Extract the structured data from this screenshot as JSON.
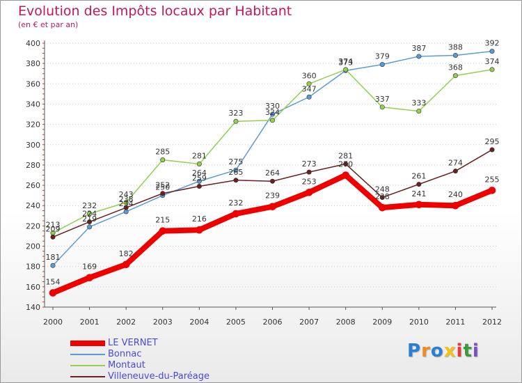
{
  "title": "Evolution des Impôts locaux par Habitant",
  "subtitle": "(en € et par an)",
  "logo": {
    "text": "Proxiti",
    "letters": [
      "P",
      "r",
      "o",
      "x",
      "i",
      "t",
      "i"
    ],
    "colors": [
      "#2a7fd4",
      "#f08a24",
      "#2a7fd4",
      "#f2c21a",
      "#e23b3b",
      "#3a9a3a",
      "#7a4ec4"
    ]
  },
  "chart_data": {
    "type": "line",
    "x": [
      2000,
      2001,
      2002,
      2003,
      2004,
      2005,
      2006,
      2007,
      2008,
      2009,
      2010,
      2011,
      2012
    ],
    "ylim": [
      140,
      400
    ],
    "yticks": [
      140,
      160,
      180,
      200,
      220,
      240,
      260,
      280,
      300,
      320,
      340,
      360,
      380,
      400
    ],
    "grid": "horizontal dotted",
    "legend_position": "bottom-left",
    "series": [
      {
        "name": "LE VERNET",
        "color": "#ee0000",
        "line_width": 8,
        "values": [
          154,
          169,
          182,
          215,
          216,
          232,
          239,
          253,
          270,
          238,
          241,
          240,
          255
        ]
      },
      {
        "name": "Bonnac",
        "color": "#5b9bd5",
        "line_width": 1.5,
        "values": [
          181,
          219,
          234,
          250,
          264,
          275,
          330,
          347,
          373,
          379,
          387,
          388,
          392
        ]
      },
      {
        "name": "Montaut",
        "color": "#92d050",
        "line_width": 1.5,
        "values": [
          213,
          232,
          243,
          285,
          281,
          323,
          324,
          360,
          374,
          337,
          333,
          368,
          374
        ]
      },
      {
        "name": "Villeneuve-du-Paréage",
        "color": "#6b1f1f",
        "line_width": 1.5,
        "values": [
          209,
          224,
          238,
          252,
          259,
          265,
          264,
          273,
          281,
          248,
          261,
          274,
          295
        ]
      }
    ]
  }
}
